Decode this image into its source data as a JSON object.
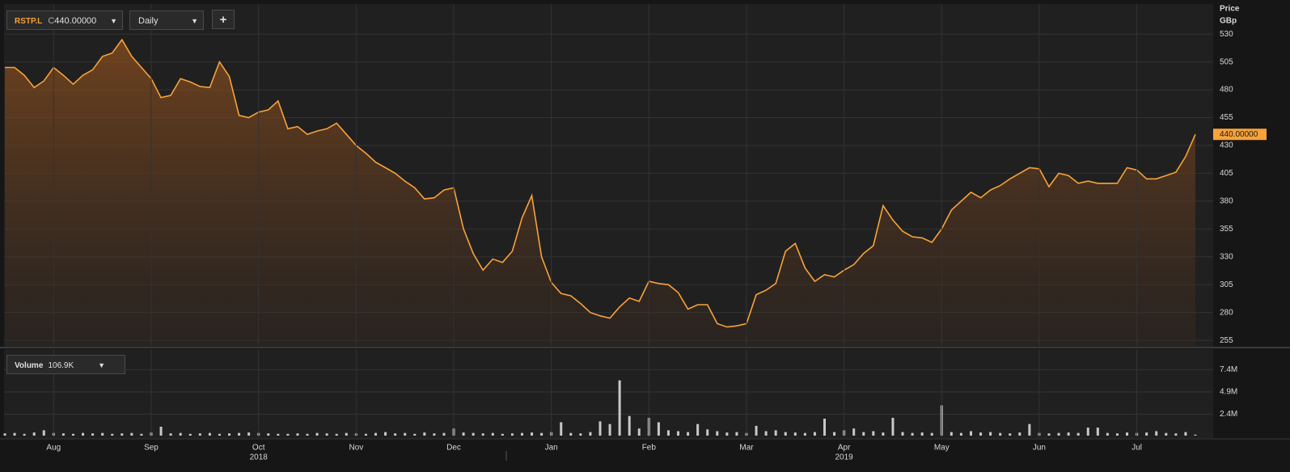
{
  "toolbar": {
    "symbol": "RSTP.L",
    "close_prefix": "C",
    "close": "440.00000",
    "interval": "Daily",
    "add": "+"
  },
  "chart_data": [
    {
      "type": "line",
      "axis_title": "Price",
      "axis_unit": "GBp",
      "color": "#f7a23a",
      "current_label": "440.00000",
      "values": [
        500,
        500,
        493,
        482,
        488,
        500,
        493,
        485,
        493,
        498,
        510,
        513,
        525,
        510,
        500,
        490,
        473,
        475,
        490,
        487,
        483,
        482,
        505,
        492,
        457,
        455,
        460,
        462,
        470,
        445,
        447,
        440,
        443,
        445,
        450,
        440,
        430,
        423,
        415,
        410,
        405,
        398,
        392,
        382,
        383,
        390,
        392,
        355,
        333,
        318,
        328,
        325,
        335,
        365,
        385,
        330,
        307,
        297,
        295,
        288,
        280,
        277,
        275,
        285,
        293,
        290,
        308,
        306,
        305,
        298,
        283,
        287,
        287,
        270,
        267,
        268,
        270,
        296,
        300,
        306,
        335,
        342,
        320,
        308,
        314,
        312,
        318,
        323,
        333,
        340,
        376,
        363,
        353,
        348,
        347,
        343,
        355,
        372,
        380,
        388,
        383,
        390,
        394,
        400,
        405,
        410,
        409,
        393,
        405,
        403,
        396,
        398,
        396,
        396,
        396,
        410,
        408,
        400,
        400,
        403,
        406,
        420,
        440
      ],
      "ylim": [
        250,
        557
      ],
      "yticks": [
        530,
        505,
        480,
        455,
        430,
        405,
        380,
        355,
        330,
        305,
        280,
        255
      ],
      "grid": true
    },
    {
      "type": "bar",
      "title": "Volume",
      "current_label": "106.9K",
      "color": "#c8c8c8",
      "categories": [
        null,
        null,
        null,
        null,
        null,
        "Aug",
        null,
        null,
        null,
        null,
        null,
        null,
        null,
        null,
        null,
        "Sep",
        null,
        null,
        null,
        null,
        null,
        null,
        null,
        null,
        null,
        null,
        "Oct",
        null,
        null,
        null,
        null,
        null,
        null,
        null,
        null,
        null,
        "Nov",
        null,
        null,
        null,
        null,
        null,
        null,
        null,
        null,
        null,
        "Dec",
        null,
        null,
        null,
        null,
        null,
        null,
        null,
        null,
        null,
        "Jan",
        null,
        null,
        null,
        null,
        null,
        null,
        null,
        null,
        null,
        "Feb",
        null,
        null,
        null,
        null,
        null,
        null,
        null,
        null,
        null,
        "Mar",
        null,
        null,
        null,
        null,
        null,
        null,
        null,
        null,
        null,
        "Apr",
        null,
        null,
        null,
        null,
        null,
        null,
        null,
        null,
        null,
        "May",
        null,
        null,
        null,
        null,
        null,
        null,
        null,
        null,
        null,
        "Jun",
        null,
        null,
        null,
        null,
        null,
        null,
        null,
        null,
        null,
        "Jul",
        null,
        null,
        null,
        null,
        null,
        null
      ],
      "values": [
        250000,
        300000,
        200000,
        350000,
        600000,
        300000,
        250000,
        200000,
        300000,
        250000,
        300000,
        200000,
        250000,
        300000,
        200000,
        350000,
        1000000,
        250000,
        300000,
        200000,
        250000,
        300000,
        200000,
        250000,
        300000,
        350000,
        300000,
        250000,
        200000,
        200000,
        250000,
        200000,
        300000,
        250000,
        200000,
        300000,
        250000,
        200000,
        300000,
        400000,
        250000,
        300000,
        200000,
        350000,
        250000,
        300000,
        800000,
        350000,
        300000,
        250000,
        300000,
        200000,
        250000,
        300000,
        350000,
        300000,
        400000,
        1500000,
        300000,
        250000,
        400000,
        1600000,
        1300000,
        6200000,
        2200000,
        800000,
        2000000,
        1500000,
        600000,
        500000,
        400000,
        1300000,
        700000,
        500000,
        350000,
        400000,
        300000,
        1100000,
        500000,
        600000,
        400000,
        350000,
        300000,
        400000,
        1900000,
        400000,
        600000,
        800000,
        400000,
        500000,
        350000,
        2000000,
        400000,
        300000,
        350000,
        300000,
        3400000,
        400000,
        300000,
        500000,
        350000,
        400000,
        300000,
        250000,
        350000,
        1300000,
        300000,
        250000,
        300000,
        350000,
        300000,
        900000,
        900000,
        300000,
        250000,
        350000,
        300000,
        350000,
        500000,
        300000,
        250000,
        400000,
        106900
      ],
      "ylim": [
        0,
        9700000
      ],
      "yticks": [
        {
          "value": 7400000,
          "label": "7.4M"
        },
        {
          "value": 4900000,
          "label": "4.9M"
        },
        {
          "value": 2400000,
          "label": "2.4M"
        }
      ],
      "grid": true,
      "year_labels": [
        {
          "value": 26,
          "label": "2018"
        },
        {
          "value": 86,
          "label": "2019"
        }
      ]
    }
  ]
}
